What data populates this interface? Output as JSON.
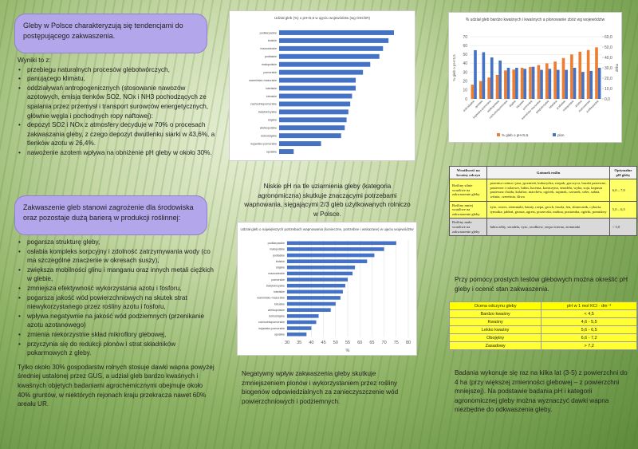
{
  "left": {
    "box1": "Gleby w Polsce charakteryzują się tendencjami do postępującego zakwaszenia.",
    "intro": "Wyniki to z:",
    "bullets1": [
      "przebiegu naturalnych procesów glebotwórczych,",
      "panującego klimatu,",
      "oddziaływań antropogenicznych (stosowanie nawozów azotowych, emisja tlenków SO2, NOx i NH3 pochodzących ze spalania przez przemysł i transport surowców energetycznych, głównie węgla i pochodnych ropy naftowej):",
      "depozyt SO2 i NOx z atmosfery decyduje w 70% o procesach zakwaszania gleby, z czego depozyt dwutlenku siarki w 43,6%, a tlenków azotu w 26,4%.",
      "nawożenie azotem wpływa na obniżenie pH gleby w około 30%."
    ],
    "box2": "Zakwaszenie gleb stanowi zagrożenie dla środowiska oraz pozostaje dużą barierą w produkcji roślinnej:",
    "bullets2": [
      "pogarsza strukturę gleby,",
      "osłabia kompleks sorpcyjny i zdolność zatrzymywania wody (co ma szczególne znaczenie w okresach suszy),",
      "zwiększa mobilności glinu i manganu oraz innych metali ciężkich w glebie,",
      "zmniejsza efektywność wykorzystania azotu i fosforu,",
      "pogarsza jakość wód powierzchniowych na skutek strat niewykorzystanego przez rośliny azotu i fosforu,",
      "wpływa negatywnie na jakość wód podziemnych (przenikanie azotu azotanowego)",
      "zmienia niekorzystnie skład mikroflory glebowej,",
      "przyczynia się do redukcji plonów i strat składników pokarmowych z gleby."
    ],
    "paragraph": "Tylko około 30% gospodarstw rolnych stosuje dawki wapna powyżej średniej ustalonej przez GUS, a udział gleb bardzo kwaśnych i kwaśnych objętych badaniami agrochemicznymi obejmuje około 40% gruntów, w niektórych rejonach kraju przekracza nawet 60% areału UR."
  },
  "charts": [
    {
      "type": "hbar",
      "title": "Udział gleb (%) o pH<5,5 w ujęciu województw (wg OSChR)",
      "categories": [
        "podkarpackie",
        "łódzkie",
        "mazowieckie",
        "podlaskie",
        "małopolskie",
        "pomorskie",
        "warmińsko-mazurskie",
        "lubelskie",
        "lubuskie",
        "zachodniopomorskie",
        "świętokrzyskie",
        "śląskie",
        "wielkopolskie",
        "dolnośląskie",
        "kujawsko-pomorskie",
        "opolskie"
      ],
      "values": [
        63,
        60,
        57,
        55,
        50,
        46,
        42,
        42,
        40,
        39,
        38,
        37,
        36,
        34,
        23,
        8
      ],
      "color": "#4472c4",
      "xlim": [
        0,
        70
      ]
    },
    {
      "type": "hbar",
      "title": "Udział gleb o największych potrzebach wapnowania (konieczne, potrzebne i wskazane) w ujęciu województw",
      "categories": [
        "podkarpackie",
        "małopolskie",
        "podlaskie",
        "łódzkie",
        "śląskie",
        "mazowieckie",
        "pomorskie",
        "świętokrzyskie",
        "lubelskie",
        "warmińsko-mazurskie",
        "lubuskie",
        "wielkopolskie",
        "dolnośląskie",
        "zachodniopomorskie",
        "kujawsko-pomorskie",
        "opolskie"
      ],
      "values": [
        75,
        70,
        66,
        63,
        58,
        57,
        55,
        54,
        53,
        52,
        50,
        48,
        43,
        42,
        40,
        38
      ],
      "color": "#4472c4",
      "xlim": [
        30,
        80
      ],
      "xticks": [
        30,
        35,
        40,
        45,
        50,
        55,
        60,
        65,
        70,
        75,
        80
      ],
      "xlabel": "%",
      "grid": true
    },
    {
      "type": "combo",
      "title": "% udział gleb bardzo kwaśnych i kwaśnych a plonowanie zbóż wg województw",
      "categories": [
        "dolnośląskie",
        "opolskie",
        "kujawsko-pomorskie",
        "wielkopolskie",
        "zachodniopomorskie",
        "śląskie",
        "lubuskie",
        "pomorskie",
        "warmińsko-mazurskie",
        "świętokrzyskie",
        "lubelskie",
        "podlaskie",
        "małopolskie",
        "łódzkie",
        "mazowieckie",
        "podkarpackie"
      ],
      "series": [
        {
          "name": "% gleb o pH<5,5",
          "color": "#ed7d31",
          "values": [
            16,
            20,
            24,
            27,
            32,
            33,
            35,
            36,
            38,
            40,
            42,
            46,
            50,
            53,
            55,
            58
          ]
        },
        {
          "name": "plon",
          "color": "#4472c4",
          "axis": "y2",
          "values": [
            47,
            45,
            40,
            37,
            30,
            30,
            29,
            31,
            28,
            29,
            28,
            28,
            30,
            26,
            27,
            30
          ]
        }
      ],
      "ylabel": "% gleb o pH<5,5",
      "y2label": "dt/ha",
      "ylim": [
        0,
        70
      ],
      "yticks": [
        0,
        10,
        20,
        30,
        40,
        50,
        60,
        70
      ],
      "y2lim": [
        0,
        60
      ],
      "y2ticks": [
        {
          "value": 0,
          "label": "0,0"
        },
        {
          "value": 10,
          "label": "10,0"
        },
        {
          "value": 20,
          "label": "20,0"
        },
        {
          "value": 30,
          "label": "30,0"
        },
        {
          "value": 40,
          "label": "40,0"
        },
        {
          "value": 50,
          "label": "50,0"
        },
        {
          "value": 60,
          "label": "60,0"
        }
      ]
    }
  ],
  "middle": {
    "caption1": "Niskie pH na tle uziarnienia gleby (kategoria agronomiczna) skutkuje znaczącymi potrzebami wapnowania, sięgającymi 2/3 gleb użytkowanych rolniczo w Polsce.",
    "caption2": "Negatywny wpływ zakwaszenia gleby skutkuje zmniejszeniem plonów i wykorzystaniem przez rośliny biogenów odpowiedzialnych za zanieczyszczenie wód powierzchniowych i podziemnych."
  },
  "right": {
    "table1": {
      "header": [
        "Wrażliwość na kwaśny odczyn",
        "Gatunek roślin",
        "Optymalne pH gleby"
      ],
      "rows": [
        [
          "Rośliny silnie wrażliwe na zakwaszenie gleby",
          "pszenica ozima i jara, jęczmień, kukurydza, rzepak, gorczyca, buraki pastewne, pastewne i cukrowe, lubin, lucerna, koniczyna, seradela, wyka, soja, kapusta pastewna i biała, kalafior, marchew, ogórek, szpinak, czosnek, seler, sałata, wiśnia, czereśnia, śliwa",
          "6,0 – 7,0"
        ],
        [
          "Rośliny mniej wrażliwe na zakwaszenie gleby",
          "żyto, owies, ziemniaki, bataty, rzepa, groch, fasola, len, słonecznik, cykoria, tymotka, jabłoń, grusza, agrest, porzeczki, malina, poziomka, ogórki, pomidory",
          "5,0 – 6,5"
        ],
        [
          "Rośliny mało wrażliwe na zakwaszenie gleby",
          "łubin żółty, seradela, żyto, rzodkiew, rzepa ścierna, ziemniaki",
          "< 5,0"
        ]
      ]
    },
    "text1": "Przy pomocy prostych testów glebowych można określić pH gleby i ocenić stan zakwaszenia.",
    "table2": {
      "header": [
        "Ocena odczynu gleby",
        "pH w 1 mol KCl · dm⁻³"
      ],
      "rows": [
        [
          "Bardzo kwaśny",
          "< 4,5"
        ],
        [
          "Kwaśny",
          "4,6 - 5,5"
        ],
        [
          "Lekko kwaśny",
          "5,6 - 6,5"
        ],
        [
          "Obojętny",
          "6,6 - 7,2"
        ],
        [
          "Zasadowy",
          "> 7,2"
        ]
      ]
    },
    "text2": "Badania wykonuje się raz na kilka lat (3-5) z powierzchni do 4 ha (przy większej zmienności glebowej – z powierzchni mniejszej). Na podstawie badania pH i kategorii agronomicznej gleby można wyznaczyć dawki wapna niezbędne do odkwaszenia gleby."
  }
}
